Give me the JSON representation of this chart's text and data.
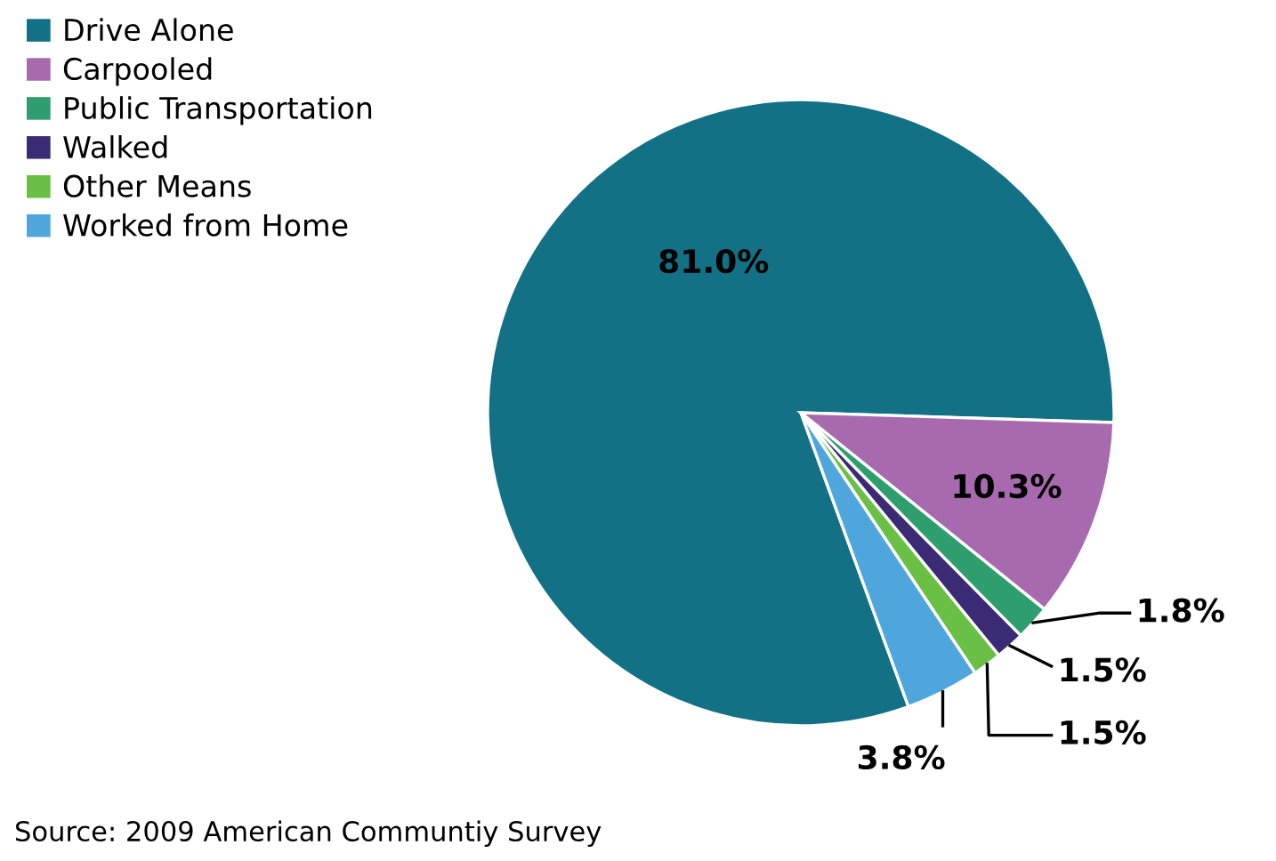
{
  "chart_data": {
    "type": "pie",
    "categories": [
      "Drive Alone",
      "Carpooled",
      "Public Transportation",
      "Walked",
      "Other Means",
      "Worked from Home"
    ],
    "values": [
      81.0,
      10.3,
      1.8,
      1.5,
      1.5,
      3.8
    ],
    "colors": [
      "#137186",
      "#a76aae",
      "#2e9e6e",
      "#3b2a74",
      "#6abf45",
      "#4ea6dc"
    ],
    "value_labels": [
      "81.0%",
      "10.3%",
      "1.8%",
      "1.5%",
      "1.5%",
      "3.8%"
    ],
    "legend": "top left",
    "annotations": [
      "Source: 2009 American Communtiy Survey"
    ]
  }
}
